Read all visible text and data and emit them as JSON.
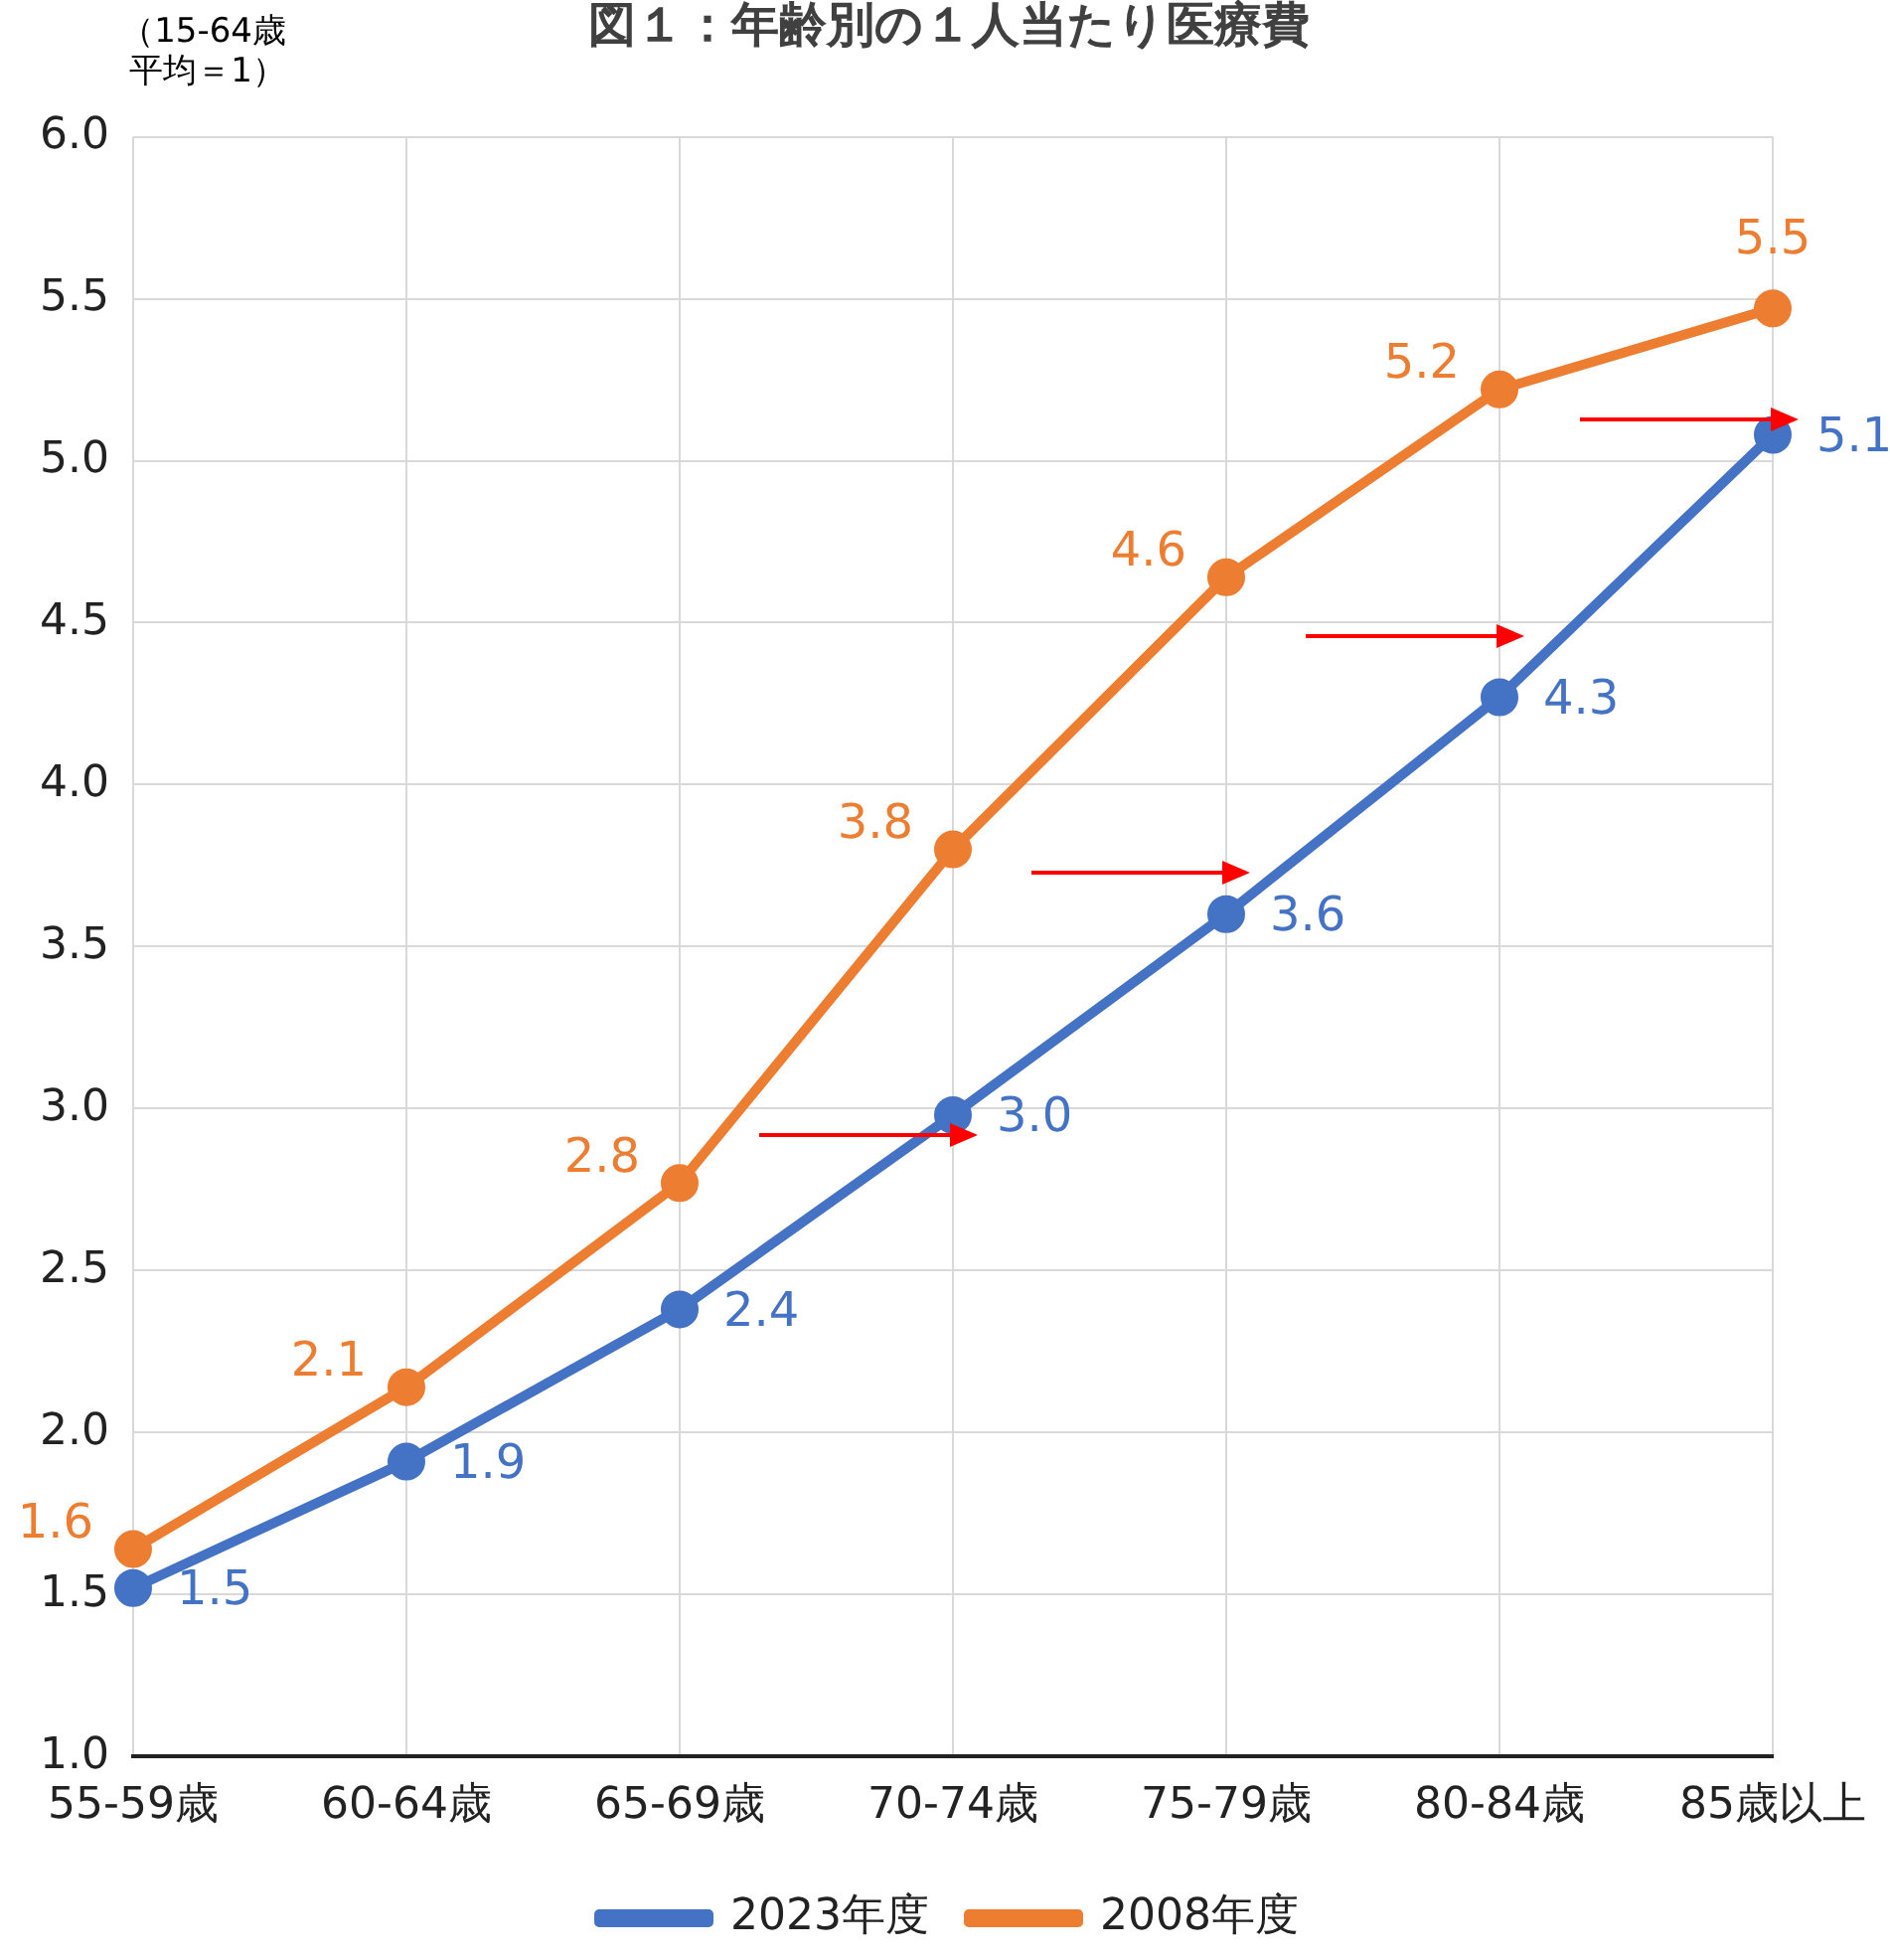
{
  "chart_data": {
    "type": "line",
    "title": "図１：年齢別の１人当たり医療費",
    "ylabel": "（15-64歳平均＝1）",
    "categories": [
      "55-59歳",
      "60-64歳",
      "65-69歳",
      "70-74歳",
      "75-79歳",
      "80-84歳",
      "85歳以上"
    ],
    "series": [
      {
        "name": "2023年度",
        "color": "#4472c4",
        "values": [
          1.52,
          1.91,
          2.38,
          2.98,
          3.6,
          4.27,
          5.08
        ],
        "value_labels": [
          "1.5",
          "1.9",
          "2.4",
          "3.0",
          "3.6",
          "4.3",
          "5.1"
        ]
      },
      {
        "name": "2008年度",
        "color": "#ed7d31",
        "values": [
          1.64,
          2.14,
          2.77,
          3.8,
          4.64,
          5.22,
          5.47
        ],
        "value_labels": [
          "1.6",
          "2.1",
          "2.8",
          "3.8",
          "4.6",
          "5.2",
          "5.5"
        ]
      }
    ],
    "ylim": [
      1,
      6
    ],
    "yticks": [
      {
        "value": 1,
        "label": "1.0"
      },
      {
        "value": 1.5,
        "label": "1.5"
      },
      {
        "value": 2,
        "label": "2.0"
      },
      {
        "value": 2.5,
        "label": "2.5"
      },
      {
        "value": 3,
        "label": "3.0"
      },
      {
        "value": 3.5,
        "label": "3.5"
      },
      {
        "value": 4,
        "label": "4.0"
      },
      {
        "value": 4.5,
        "label": "4.5"
      },
      {
        "value": 5,
        "label": "5.0"
      },
      {
        "value": 5.5,
        "label": "5.5"
      },
      {
        "value": 6,
        "label": "6.0"
      }
    ],
    "grid": true,
    "legend": "bottom",
    "marker": "circle",
    "line_style": "solid"
  }
}
